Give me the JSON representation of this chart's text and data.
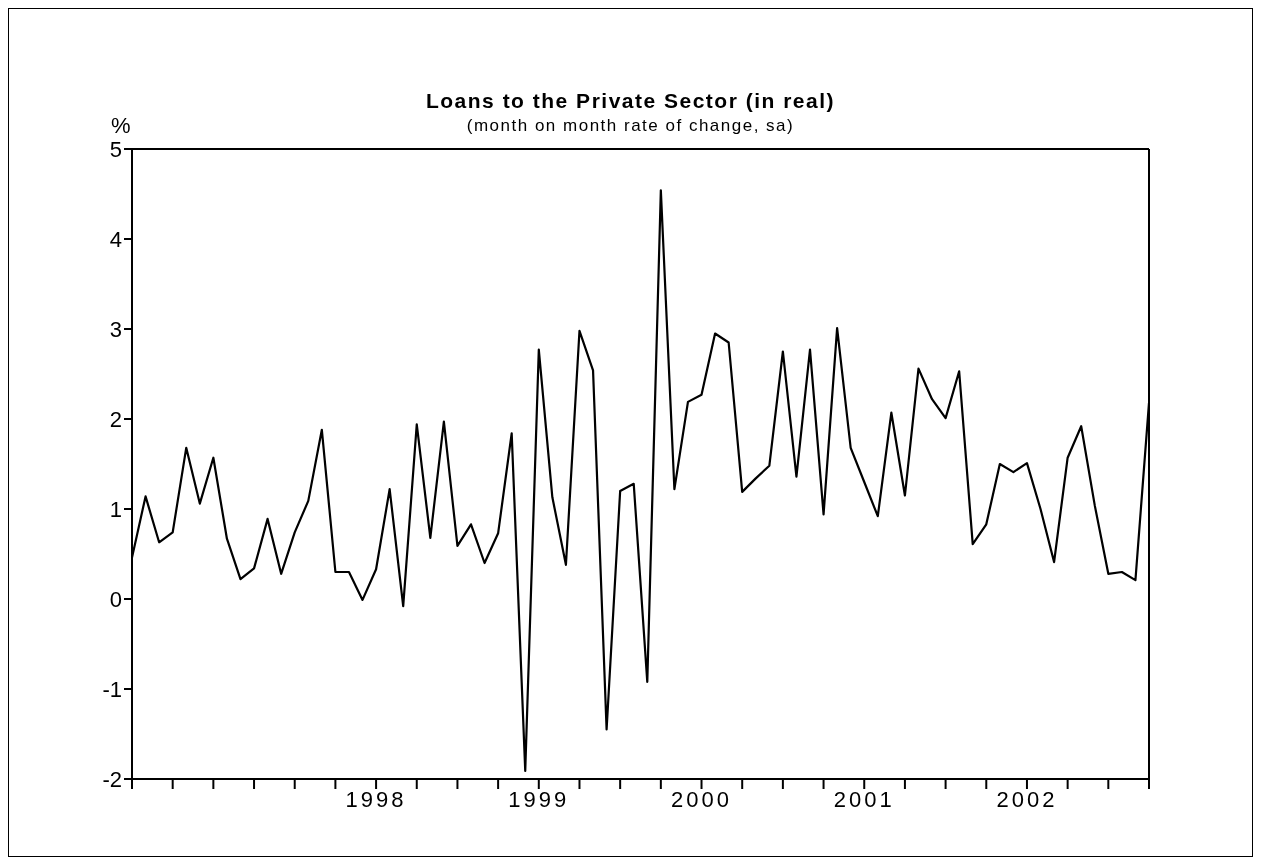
{
  "chart_data": {
    "type": "line",
    "title": "Loans to the Private Sector (in real)",
    "subtitle": "(month on month rate of change, sa)",
    "ylabel": "%",
    "x": [
      "1997-01",
      "1997-02",
      "1997-03",
      "1997-04",
      "1997-05",
      "1997-06",
      "1997-07",
      "1997-08",
      "1997-09",
      "1997-10",
      "1997-11",
      "1997-12",
      "1998-01",
      "1998-02",
      "1998-03",
      "1998-04",
      "1998-05",
      "1998-06",
      "1998-07",
      "1998-08",
      "1998-09",
      "1998-10",
      "1998-11",
      "1998-12",
      "1999-01",
      "1999-02",
      "1999-03",
      "1999-04",
      "1999-05",
      "1999-06",
      "1999-07",
      "1999-08",
      "1999-09",
      "1999-10",
      "1999-11",
      "1999-12",
      "2000-01",
      "2000-02",
      "2000-03",
      "2000-04",
      "2000-05",
      "2000-06",
      "2000-07",
      "2000-08",
      "2000-09",
      "2000-10",
      "2000-11",
      "2000-12",
      "2001-01",
      "2001-02",
      "2001-03",
      "2001-04",
      "2001-05",
      "2001-06",
      "2001-07",
      "2001-08",
      "2001-09",
      "2001-10",
      "2001-11",
      "2001-12",
      "2002-01",
      "2002-02",
      "2002-03",
      "2002-04",
      "2002-05",
      "2002-06",
      "2002-07",
      "2002-08",
      "2002-09",
      "2002-10",
      "2002-11",
      "2002-12",
      "2003-01",
      "2003-02",
      "2003-03",
      "2003-04"
    ],
    "series": [
      {
        "color": "#000000",
        "values": [
          0.46,
          1.14,
          0.63,
          0.74,
          1.68,
          1.06,
          1.57,
          0.67,
          0.22,
          0.34,
          0.89,
          0.28,
          0.74,
          1.09,
          1.88,
          0.3,
          0.3,
          -0.01,
          0.33,
          1.22,
          -0.08,
          1.94,
          0.68,
          1.97,
          0.59,
          0.83,
          0.4,
          0.73,
          1.84,
          -1.91,
          2.77,
          1.13,
          0.38,
          2.98,
          2.54,
          -1.45,
          1.2,
          1.28,
          -0.92,
          4.54,
          1.22,
          2.19,
          2.27,
          2.95,
          2.85,
          1.19,
          1.34,
          1.48,
          2.75,
          1.36,
          2.77,
          0.94,
          3.01,
          1.68,
          1.3,
          0.92,
          2.07,
          1.15,
          2.56,
          2.22,
          2.01,
          2.53,
          0.61,
          0.83,
          1.5,
          1.41,
          1.51,
          1.0,
          0.41,
          1.57,
          1.92,
          1.04,
          0.28,
          0.3,
          0.21,
          2.18
        ]
      }
    ],
    "xlim": [
      "1997-01",
      "2003-04"
    ],
    "xticks": [
      {
        "value": "1997-01",
        "label": null
      },
      {
        "value": "1997-04",
        "label": null
      },
      {
        "value": "1997-07",
        "label": null
      },
      {
        "value": "1997-10",
        "label": null
      },
      {
        "value": "1998-01",
        "label": null
      },
      {
        "value": "1998-04",
        "label": null
      },
      {
        "value": "1998-07",
        "label": "1998"
      },
      {
        "value": "1998-10",
        "label": null
      },
      {
        "value": "1999-01",
        "label": null
      },
      {
        "value": "1999-04",
        "label": null
      },
      {
        "value": "1999-07",
        "label": "1999"
      },
      {
        "value": "1999-10",
        "label": null
      },
      {
        "value": "2000-01",
        "label": null
      },
      {
        "value": "2000-04",
        "label": null
      },
      {
        "value": "2000-07",
        "label": "2000"
      },
      {
        "value": "2000-10",
        "label": null
      },
      {
        "value": "2001-01",
        "label": null
      },
      {
        "value": "2001-04",
        "label": null
      },
      {
        "value": "2001-07",
        "label": "2001"
      },
      {
        "value": "2001-10",
        "label": null
      },
      {
        "value": "2002-01",
        "label": null
      },
      {
        "value": "2002-04",
        "label": null
      },
      {
        "value": "2002-07",
        "label": "2002"
      },
      {
        "value": "2002-10",
        "label": null
      },
      {
        "value": "2003-01",
        "label": null
      },
      {
        "value": "2003-04",
        "label": null
      }
    ],
    "ylim": [
      -2,
      5
    ],
    "yticks": [
      -2,
      -1,
      0,
      1,
      2,
      3,
      4,
      5
    ],
    "grid": false,
    "legend": false,
    "marker": "none",
    "line_style": "solid"
  }
}
